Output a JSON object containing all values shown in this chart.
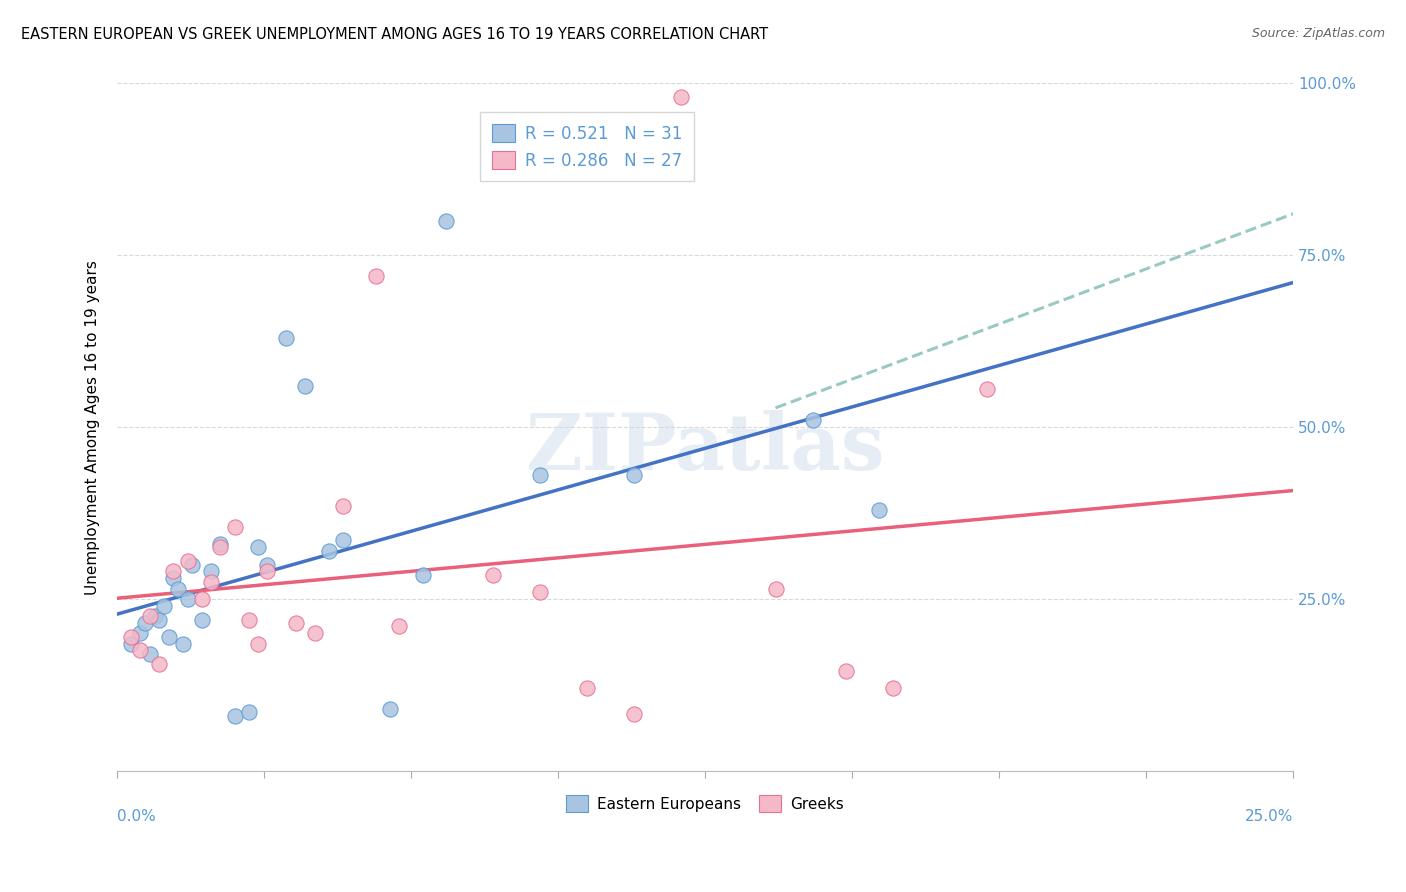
{
  "title": "EASTERN EUROPEAN VS GREEK UNEMPLOYMENT AMONG AGES 16 TO 19 YEARS CORRELATION CHART",
  "source": "Source: ZipAtlas.com",
  "ylabel": "Unemployment Among Ages 16 to 19 years",
  "xmin": 0.0,
  "xmax": 0.25,
  "ymin": 0.0,
  "ymax": 1.0,
  "yticks": [
    0.0,
    0.25,
    0.5,
    0.75,
    1.0
  ],
  "ytick_labels": [
    "",
    "25.0%",
    "50.0%",
    "75.0%",
    "100.0%"
  ],
  "watermark": "ZIPatlas",
  "blue_scatter_color": "#a8c4e0",
  "blue_scatter_edge": "#5b9bd5",
  "pink_scatter_color": "#f4b8c8",
  "pink_scatter_edge": "#e87090",
  "blue_line_color": "#4472c4",
  "pink_line_color": "#e8607a",
  "dashed_line_color": "#88c0b8",
  "axis_color": "#5b9bd5",
  "legend_r1": "R = 0.521",
  "legend_n1": "N = 31",
  "legend_r2": "R = 0.286",
  "legend_n2": "N = 27",
  "eastern_x": [
    0.003,
    0.005,
    0.006,
    0.007,
    0.008,
    0.009,
    0.01,
    0.011,
    0.012,
    0.013,
    0.014,
    0.015,
    0.016,
    0.018,
    0.02,
    0.022,
    0.025,
    0.028,
    0.03,
    0.032,
    0.036,
    0.04,
    0.045,
    0.048,
    0.058,
    0.065,
    0.07,
    0.09,
    0.11,
    0.148,
    0.162
  ],
  "eastern_y": [
    0.185,
    0.2,
    0.215,
    0.17,
    0.225,
    0.22,
    0.24,
    0.195,
    0.28,
    0.265,
    0.185,
    0.25,
    0.3,
    0.22,
    0.29,
    0.33,
    0.08,
    0.085,
    0.325,
    0.3,
    0.63,
    0.56,
    0.32,
    0.335,
    0.09,
    0.285,
    0.8,
    0.43,
    0.43,
    0.51,
    0.38
  ],
  "greek_x": [
    0.003,
    0.005,
    0.007,
    0.009,
    0.012,
    0.015,
    0.018,
    0.02,
    0.022,
    0.025,
    0.028,
    0.03,
    0.032,
    0.038,
    0.042,
    0.048,
    0.055,
    0.06,
    0.08,
    0.09,
    0.1,
    0.11,
    0.12,
    0.14,
    0.155,
    0.165,
    0.185
  ],
  "greek_y": [
    0.195,
    0.175,
    0.225,
    0.155,
    0.29,
    0.305,
    0.25,
    0.275,
    0.325,
    0.355,
    0.22,
    0.185,
    0.29,
    0.215,
    0.2,
    0.385,
    0.72,
    0.21,
    0.285,
    0.26,
    0.12,
    0.082,
    0.98,
    0.265,
    0.145,
    0.12,
    0.555
  ],
  "title_fontsize": 10.5,
  "scatter_size": 120
}
